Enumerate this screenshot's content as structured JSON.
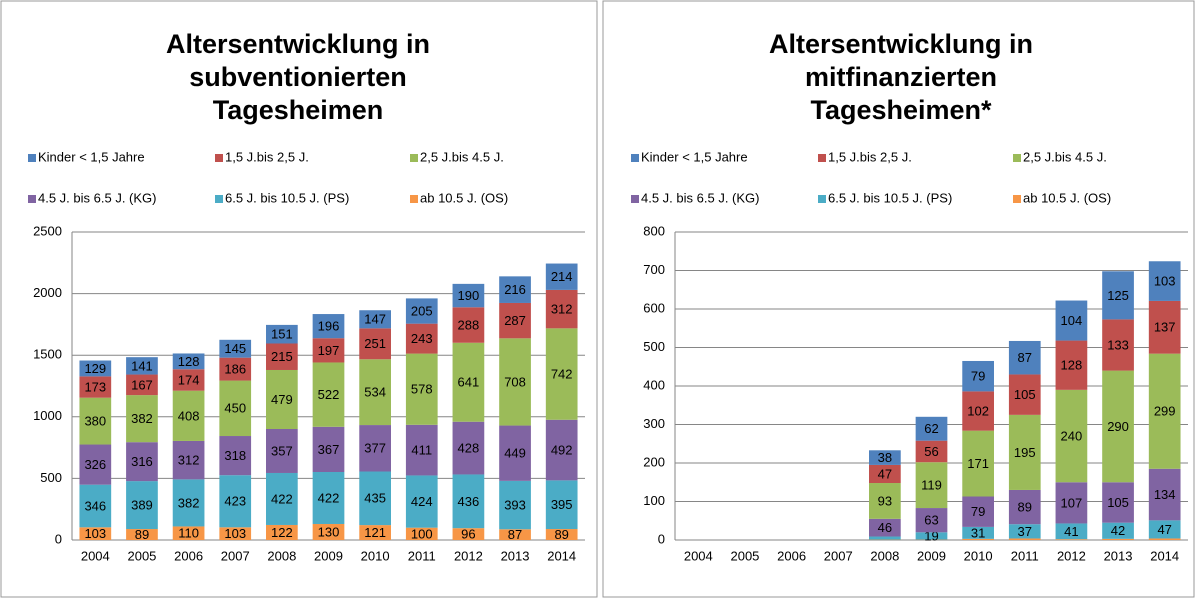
{
  "chart_data": [
    {
      "type": "stacked-bar",
      "title": [
        "Altersentwicklung in",
        "subventionierten",
        "Tagesheimen"
      ],
      "categories": [
        "2004",
        "2005",
        "2006",
        "2007",
        "2008",
        "2009",
        "2010",
        "2011",
        "2012",
        "2013",
        "2014"
      ],
      "ylim": [
        0,
        2500
      ],
      "yticks": [
        0,
        500,
        1000,
        1500,
        2000,
        2500
      ],
      "grid": true,
      "series": [
        {
          "name": "Kinder < 1,5 Jahre",
          "color": "#4f81bd",
          "values": [
            129,
            141,
            128,
            145,
            151,
            196,
            147,
            205,
            190,
            216,
            214
          ]
        },
        {
          "name": "1,5 J.bis 2,5 J.",
          "color": "#c0504d",
          "values": [
            173,
            167,
            174,
            186,
            215,
            197,
            251,
            243,
            288,
            287,
            312
          ]
        },
        {
          "name": "2,5 J.bis 4.5 J.",
          "color": "#9bbb59",
          "values": [
            380,
            382,
            408,
            450,
            479,
            522,
            534,
            578,
            641,
            708,
            742
          ]
        },
        {
          "name": "4.5 J. bis 6.5 J. (KG)",
          "color": "#8064a2",
          "values": [
            326,
            316,
            312,
            318,
            357,
            367,
            377,
            411,
            428,
            449,
            492
          ]
        },
        {
          "name": "6.5 J. bis 10.5 J.  (PS)",
          "color": "#4bacc6",
          "values": [
            346,
            389,
            382,
            423,
            422,
            422,
            435,
            424,
            436,
            393,
            395
          ]
        },
        {
          "name": "ab 10.5 J.  (OS)",
          "color": "#f79646",
          "values": [
            103,
            89,
            110,
            103,
            122,
            130,
            121,
            100,
            96,
            87,
            89
          ]
        }
      ]
    },
    {
      "type": "stacked-bar",
      "title": [
        "Altersentwicklung in",
        "mitfinanzierten",
        "Tagesheimen*"
      ],
      "categories": [
        "2004",
        "2005",
        "2006",
        "2007",
        "2008",
        "2009",
        "2010",
        "2011",
        "2012",
        "2013",
        "2014"
      ],
      "ylim": [
        0,
        800
      ],
      "yticks": [
        0,
        100,
        200,
        300,
        400,
        500,
        600,
        700,
        800
      ],
      "grid": true,
      "series": [
        {
          "name": "Kinder < 1,5 Jahre",
          "color": "#4f81bd",
          "values": [
            null,
            null,
            null,
            null,
            38,
            62,
            79,
            87,
            104,
            125,
            103
          ]
        },
        {
          "name": "1,5 J.bis 2,5 J.",
          "color": "#c0504d",
          "values": [
            null,
            null,
            null,
            null,
            47,
            56,
            102,
            105,
            128,
            133,
            137
          ]
        },
        {
          "name": "2,5 J.bis 4.5 J.",
          "color": "#9bbb59",
          "values": [
            null,
            null,
            null,
            null,
            93,
            119,
            171,
            195,
            240,
            290,
            299
          ]
        },
        {
          "name": "4.5 J. bis 6.5 J. (KG)",
          "color": "#8064a2",
          "values": [
            null,
            null,
            null,
            null,
            46,
            63,
            79,
            89,
            107,
            105,
            134
          ]
        },
        {
          "name": "6.5 J. bis 10.5 J.  (PS)",
          "color": "#4bacc6",
          "values": [
            null,
            null,
            null,
            null,
            8,
            19,
            31,
            37,
            41,
            42,
            47
          ]
        },
        {
          "name": "ab 10.5 J.  (OS)",
          "color": "#f79646",
          "values": [
            null,
            null,
            null,
            null,
            1,
            1,
            3,
            4,
            2,
            3,
            4
          ]
        }
      ]
    }
  ]
}
